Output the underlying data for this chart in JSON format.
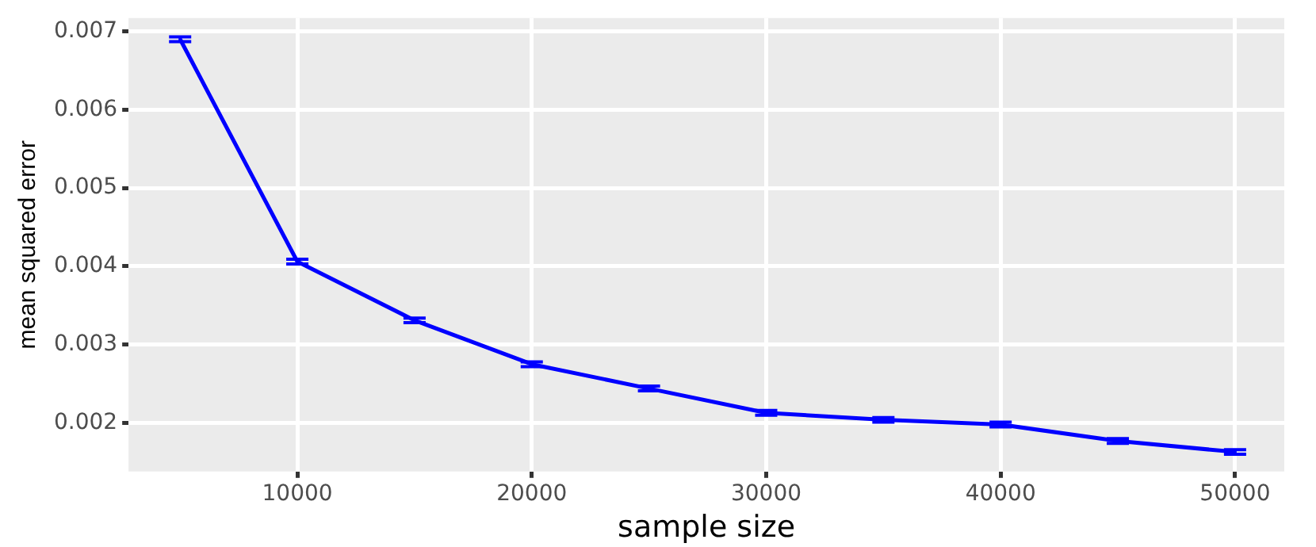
{
  "chart_data": {
    "type": "line",
    "xlabel": "sample size",
    "ylabel": "mean squared error",
    "x": [
      5000,
      10000,
      15000,
      20000,
      25000,
      30000,
      35000,
      40000,
      45000,
      50000
    ],
    "series": [
      {
        "color": "#0000ff",
        "values": [
          0.0069,
          0.00406,
          0.00331,
          0.00275,
          0.00244,
          0.00213,
          0.00204,
          0.00198,
          0.00177,
          0.00163
        ],
        "errors": [
          3e-05,
          3e-05,
          3e-05,
          3e-05,
          3e-05,
          3e-05,
          3e-05,
          3e-05,
          3e-05,
          3e-05
        ]
      }
    ],
    "xlim": [
      2800,
      52100
    ],
    "xticks": [
      10000,
      20000,
      30000,
      40000,
      50000
    ],
    "ylim": [
      0.00138,
      0.00717
    ],
    "yticks": [
      0.002,
      0.003,
      0.004,
      0.005,
      0.006,
      0.007
    ],
    "grid": true,
    "legend": false,
    "marker": "none",
    "line_style": "solid"
  }
}
